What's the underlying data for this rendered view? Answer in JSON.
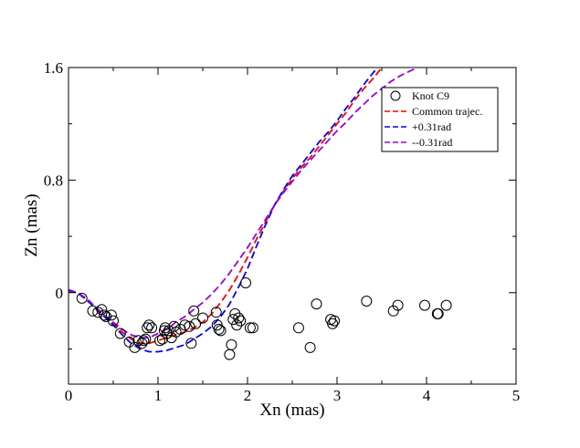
{
  "chart_data": {
    "type": "scatter",
    "title": "",
    "xlabel": "Xn (mas)",
    "ylabel": "Zn (mas)",
    "xlim": [
      0,
      5
    ],
    "ylim": [
      -0.65,
      1.6
    ],
    "x_ticks": [
      0,
      1,
      2,
      3,
      4,
      5
    ],
    "y_ticks": [
      0,
      0.8,
      1.6
    ],
    "x_tick_labels": [
      "0",
      "1",
      "2",
      "3",
      "4",
      "5"
    ],
    "y_tick_labels": [
      "0",
      "0.8",
      "1.6"
    ],
    "legend_position": "top-right",
    "series": [
      {
        "name": "Knot C9",
        "kind": "scatter",
        "marker": "open-circle",
        "color": "#000000",
        "points": [
          [
            0.15,
            -0.04
          ],
          [
            0.27,
            -0.13
          ],
          [
            0.33,
            -0.14
          ],
          [
            0.37,
            -0.12
          ],
          [
            0.4,
            -0.16
          ],
          [
            0.42,
            -0.17
          ],
          [
            0.48,
            -0.16
          ],
          [
            0.5,
            -0.2
          ],
          [
            0.58,
            -0.29
          ],
          [
            0.68,
            -0.35
          ],
          [
            0.74,
            -0.39
          ],
          [
            0.78,
            -0.34
          ],
          [
            0.82,
            -0.36
          ],
          [
            0.84,
            -0.34
          ],
          [
            0.86,
            -0.33
          ],
          [
            0.88,
            -0.25
          ],
          [
            0.9,
            -0.23
          ],
          [
            0.93,
            -0.25
          ],
          [
            1.02,
            -0.34
          ],
          [
            1.05,
            -0.33
          ],
          [
            1.07,
            -0.27
          ],
          [
            1.08,
            -0.25
          ],
          [
            1.1,
            -0.29
          ],
          [
            1.12,
            -0.27
          ],
          [
            1.15,
            -0.32
          ],
          [
            1.18,
            -0.24
          ],
          [
            1.2,
            -0.28
          ],
          [
            1.25,
            -0.26
          ],
          [
            1.3,
            -0.23
          ],
          [
            1.35,
            -0.24
          ],
          [
            1.37,
            -0.36
          ],
          [
            1.4,
            -0.13
          ],
          [
            1.42,
            -0.22
          ],
          [
            1.5,
            -0.18
          ],
          [
            1.65,
            -0.14
          ],
          [
            1.66,
            -0.23
          ],
          [
            1.68,
            -0.26
          ],
          [
            1.7,
            -0.27
          ],
          [
            1.8,
            -0.44
          ],
          [
            1.82,
            -0.37
          ],
          [
            1.84,
            -0.19
          ],
          [
            1.86,
            -0.15
          ],
          [
            1.88,
            -0.23
          ],
          [
            1.9,
            -0.18
          ],
          [
            1.92,
            -0.2
          ],
          [
            1.98,
            0.07
          ],
          [
            2.03,
            -0.25
          ],
          [
            2.06,
            -0.25
          ],
          [
            2.57,
            -0.25
          ],
          [
            2.7,
            -0.39
          ],
          [
            2.77,
            -0.08
          ],
          [
            2.93,
            -0.19
          ],
          [
            2.95,
            -0.22
          ],
          [
            2.97,
            -0.2
          ],
          [
            3.33,
            -0.06
          ],
          [
            3.63,
            -0.13
          ],
          [
            3.68,
            -0.09
          ],
          [
            3.98,
            -0.09
          ],
          [
            4.12,
            -0.15
          ],
          [
            4.13,
            -0.15
          ],
          [
            4.22,
            -0.09
          ]
        ]
      },
      {
        "name": "Common trajec.",
        "kind": "line",
        "dash": "dashed",
        "color": "#ff0000",
        "points": [
          [
            0,
            0.01
          ],
          [
            0.1,
            0.0
          ],
          [
            0.2,
            -0.05
          ],
          [
            0.3,
            -0.11
          ],
          [
            0.4,
            -0.17
          ],
          [
            0.5,
            -0.22
          ],
          [
            0.6,
            -0.28
          ],
          [
            0.7,
            -0.33
          ],
          [
            0.8,
            -0.36
          ],
          [
            0.9,
            -0.36
          ],
          [
            1.0,
            -0.34
          ],
          [
            1.1,
            -0.32
          ],
          [
            1.2,
            -0.3
          ],
          [
            1.3,
            -0.28
          ],
          [
            1.4,
            -0.25
          ],
          [
            1.5,
            -0.21
          ],
          [
            1.6,
            -0.15
          ],
          [
            1.7,
            -0.07
          ],
          [
            1.8,
            0.02
          ],
          [
            1.9,
            0.13
          ],
          [
            2.0,
            0.25
          ],
          [
            2.1,
            0.38
          ],
          [
            2.2,
            0.5
          ],
          [
            2.3,
            0.62
          ],
          [
            2.4,
            0.72
          ],
          [
            2.5,
            0.81
          ],
          [
            2.6,
            0.89
          ],
          [
            2.7,
            0.96
          ],
          [
            2.8,
            1.04
          ],
          [
            2.9,
            1.12
          ],
          [
            3.0,
            1.2
          ],
          [
            3.1,
            1.28
          ],
          [
            3.2,
            1.37
          ],
          [
            3.3,
            1.45
          ],
          [
            3.4,
            1.52
          ],
          [
            3.5,
            1.6
          ]
        ]
      },
      {
        "name": "+0.31rad",
        "kind": "line",
        "dash": "dashed",
        "color": "#0000ff",
        "points": [
          [
            0,
            0.02
          ],
          [
            0.1,
            0.0
          ],
          [
            0.2,
            -0.05
          ],
          [
            0.3,
            -0.11
          ],
          [
            0.4,
            -0.17
          ],
          [
            0.5,
            -0.23
          ],
          [
            0.6,
            -0.3
          ],
          [
            0.7,
            -0.36
          ],
          [
            0.8,
            -0.4
          ],
          [
            0.9,
            -0.42
          ],
          [
            1.0,
            -0.42
          ],
          [
            1.1,
            -0.41
          ],
          [
            1.2,
            -0.39
          ],
          [
            1.3,
            -0.37
          ],
          [
            1.4,
            -0.33
          ],
          [
            1.5,
            -0.29
          ],
          [
            1.6,
            -0.24
          ],
          [
            1.7,
            -0.17
          ],
          [
            1.8,
            -0.08
          ],
          [
            1.9,
            0.04
          ],
          [
            2.0,
            0.17
          ],
          [
            2.1,
            0.33
          ],
          [
            2.2,
            0.48
          ],
          [
            2.3,
            0.62
          ],
          [
            2.4,
            0.73
          ],
          [
            2.5,
            0.83
          ],
          [
            2.6,
            0.91
          ],
          [
            2.7,
            0.99
          ],
          [
            2.8,
            1.07
          ],
          [
            2.9,
            1.14
          ],
          [
            3.0,
            1.22
          ],
          [
            3.1,
            1.31
          ],
          [
            3.2,
            1.39
          ],
          [
            3.3,
            1.48
          ],
          [
            3.4,
            1.56
          ],
          [
            3.45,
            1.6
          ]
        ]
      },
      {
        "name": "--0.31rad",
        "kind": "line",
        "dash": "dashed",
        "color": "#9900dd",
        "points": [
          [
            0,
            0.01
          ],
          [
            0.1,
            0.0
          ],
          [
            0.2,
            -0.04
          ],
          [
            0.3,
            -0.1
          ],
          [
            0.4,
            -0.16
          ],
          [
            0.5,
            -0.21
          ],
          [
            0.6,
            -0.26
          ],
          [
            0.7,
            -0.3
          ],
          [
            0.8,
            -0.32
          ],
          [
            0.9,
            -0.32
          ],
          [
            1.0,
            -0.29
          ],
          [
            1.1,
            -0.26
          ],
          [
            1.2,
            -0.21
          ],
          [
            1.3,
            -0.17
          ],
          [
            1.4,
            -0.12
          ],
          [
            1.5,
            -0.07
          ],
          [
            1.6,
            -0.01
          ],
          [
            1.7,
            0.06
          ],
          [
            1.8,
            0.14
          ],
          [
            1.9,
            0.23
          ],
          [
            2.0,
            0.32
          ],
          [
            2.1,
            0.42
          ],
          [
            2.2,
            0.52
          ],
          [
            2.3,
            0.62
          ],
          [
            2.4,
            0.71
          ],
          [
            2.5,
            0.79
          ],
          [
            2.6,
            0.87
          ],
          [
            2.7,
            0.94
          ],
          [
            2.8,
            1.01
          ],
          [
            2.9,
            1.08
          ],
          [
            3.0,
            1.15
          ],
          [
            3.1,
            1.21
          ],
          [
            3.2,
            1.28
          ],
          [
            3.3,
            1.34
          ],
          [
            3.4,
            1.4
          ],
          [
            3.5,
            1.45
          ],
          [
            3.6,
            1.5
          ],
          [
            3.7,
            1.54
          ],
          [
            3.8,
            1.57
          ],
          [
            3.9,
            1.6
          ]
        ]
      }
    ]
  }
}
